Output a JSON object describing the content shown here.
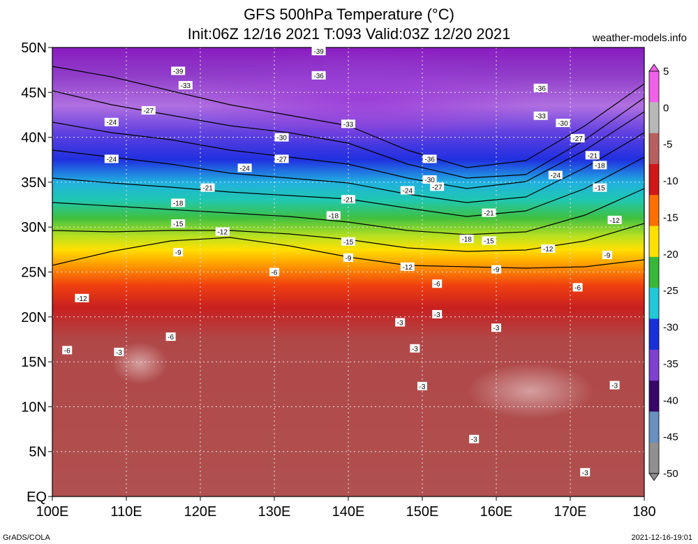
{
  "title_line1": "GFS 500hPa Temperature (°C)",
  "title_line2": "Init:06Z 12/16 2021 T:093 Valid:03Z 12/20 2021",
  "credit": "weather-models.info",
  "footer_left": "GrADS/COLA",
  "footer_right": "2021-12-16-19:01",
  "map": {
    "lon_range": [
      100,
      180
    ],
    "lat_range": [
      0,
      50
    ],
    "lat_ticks": [
      "50N",
      "45N",
      "40N",
      "35N",
      "30N",
      "25N",
      "20N",
      "15N",
      "10N",
      "5N",
      "EQ"
    ],
    "lon_ticks": [
      "100E",
      "110E",
      "120E",
      "130E",
      "140E",
      "150E",
      "160E",
      "170E",
      "180"
    ],
    "grid": true
  },
  "colorbar": {
    "labels": [
      "5",
      "0",
      "-5",
      "-10",
      "-15",
      "-20",
      "-25",
      "-30",
      "-35",
      "-40",
      "-45",
      "-50"
    ],
    "colors": [
      "#f060e8",
      "#b8b8b8",
      "#b86060",
      "#d01818",
      "#ff7000",
      "#ffe000",
      "#38b838",
      "#20c8d8",
      "#1830d8",
      "#8040d0",
      "#380868",
      "#6890c0",
      "#909090"
    ]
  },
  "chart_data": {
    "type": "heatmap",
    "variable": "500hPa Temperature (°C)",
    "contour_interval": 3,
    "contour_labels": [
      {
        "lon": 136,
        "lat": 49.6,
        "value": "-39"
      },
      {
        "lon": 117,
        "lat": 47.4,
        "value": "-39"
      },
      {
        "lon": 118,
        "lat": 45.8,
        "value": "-33"
      },
      {
        "lon": 136,
        "lat": 46.9,
        "value": "-36"
      },
      {
        "lon": 113,
        "lat": 43.0,
        "value": "-27"
      },
      {
        "lon": 108,
        "lat": 41.7,
        "value": "-24"
      },
      {
        "lon": 108,
        "lat": 37.6,
        "value": "-24"
      },
      {
        "lon": 140,
        "lat": 41.5,
        "value": "-33"
      },
      {
        "lon": 131,
        "lat": 40.0,
        "value": "-30"
      },
      {
        "lon": 131,
        "lat": 37.6,
        "value": "-27"
      },
      {
        "lon": 126,
        "lat": 36.6,
        "value": "-24"
      },
      {
        "lon": 121,
        "lat": 34.4,
        "value": "-21"
      },
      {
        "lon": 117,
        "lat": 32.7,
        "value": "-18"
      },
      {
        "lon": 117,
        "lat": 30.4,
        "value": "-15"
      },
      {
        "lon": 123,
        "lat": 29.5,
        "value": "-12"
      },
      {
        "lon": 117,
        "lat": 27.2,
        "value": "-9"
      },
      {
        "lon": 104,
        "lat": 22.1,
        "value": "-12"
      },
      {
        "lon": 102,
        "lat": 16.3,
        "value": "-6"
      },
      {
        "lon": 116,
        "lat": 17.8,
        "value": "-6"
      },
      {
        "lon": 130,
        "lat": 25.0,
        "value": "-6"
      },
      {
        "lon": 140,
        "lat": 33.1,
        "value": "-21"
      },
      {
        "lon": 138,
        "lat": 31.3,
        "value": "-18"
      },
      {
        "lon": 140,
        "lat": 28.4,
        "value": "-15"
      },
      {
        "lon": 140,
        "lat": 26.6,
        "value": "-9"
      },
      {
        "lon": 148,
        "lat": 25.6,
        "value": "-12"
      },
      {
        "lon": 148,
        "lat": 34.1,
        "value": "-24"
      },
      {
        "lon": 151,
        "lat": 37.6,
        "value": "-36"
      },
      {
        "lon": 151,
        "lat": 35.3,
        "value": "-30"
      },
      {
        "lon": 152,
        "lat": 34.5,
        "value": "-27"
      },
      {
        "lon": 166,
        "lat": 45.5,
        "value": "-36"
      },
      {
        "lon": 166,
        "lat": 42.4,
        "value": "-33"
      },
      {
        "lon": 169,
        "lat": 41.6,
        "value": "-30"
      },
      {
        "lon": 171,
        "lat": 39.9,
        "value": "-27"
      },
      {
        "lon": 173,
        "lat": 38.0,
        "value": "-21"
      },
      {
        "lon": 174,
        "lat": 36.9,
        "value": "-18"
      },
      {
        "lon": 168,
        "lat": 35.8,
        "value": "-24"
      },
      {
        "lon": 174,
        "lat": 34.4,
        "value": "-15"
      },
      {
        "lon": 159,
        "lat": 31.6,
        "value": "-21"
      },
      {
        "lon": 176,
        "lat": 30.8,
        "value": "-12"
      },
      {
        "lon": 156,
        "lat": 28.7,
        "value": "-18"
      },
      {
        "lon": 159,
        "lat": 28.5,
        "value": "-15"
      },
      {
        "lon": 167,
        "lat": 27.6,
        "value": "-12"
      },
      {
        "lon": 175,
        "lat": 26.9,
        "value": "-9"
      },
      {
        "lon": 160,
        "lat": 25.3,
        "value": "-9"
      },
      {
        "lon": 152,
        "lat": 23.7,
        "value": "-6"
      },
      {
        "lon": 171,
        "lat": 23.3,
        "value": "-6"
      },
      {
        "lon": 152,
        "lat": 20.3,
        "value": "-3"
      },
      {
        "lon": 147,
        "lat": 19.4,
        "value": "-3"
      },
      {
        "lon": 160,
        "lat": 18.8,
        "value": "-3"
      },
      {
        "lon": 149,
        "lat": 16.5,
        "value": "-3"
      },
      {
        "lon": 109,
        "lat": 16.1,
        "value": "-3"
      },
      {
        "lon": 150,
        "lat": 12.3,
        "value": "-3"
      },
      {
        "lon": 176,
        "lat": 12.4,
        "value": "-3"
      },
      {
        "lon": 157,
        "lat": 6.4,
        "value": "-3"
      },
      {
        "lon": 172,
        "lat": 2.7,
        "value": "-3"
      }
    ]
  }
}
